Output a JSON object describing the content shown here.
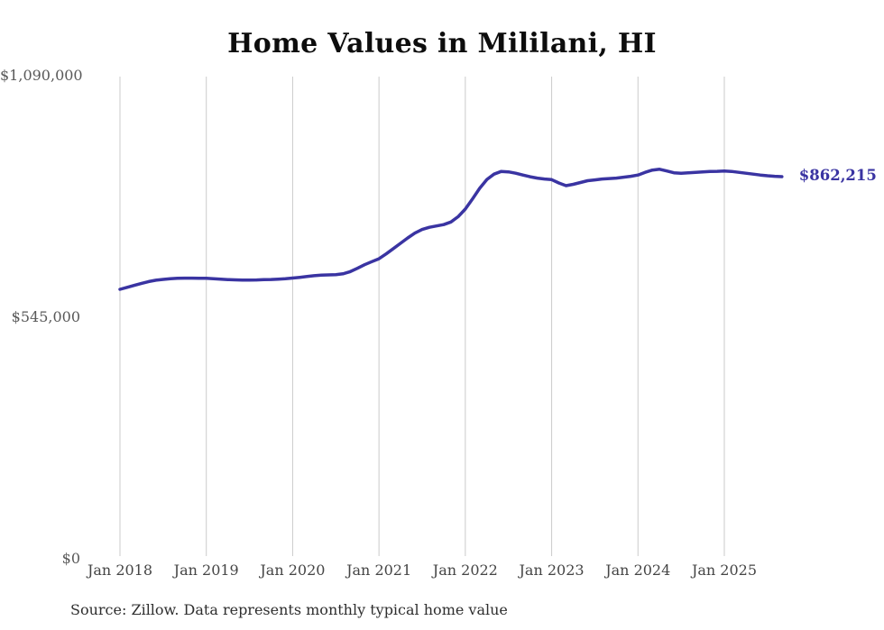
{
  "chart_data": {
    "type": "line",
    "title": "Home Values in Mililani, HI",
    "source_note": "Source: Zillow. Data represents monthly typical home value",
    "end_label": "$862,215",
    "line_color": "#3a34a2",
    "gridline_color": "#cbcbcb",
    "ylim": [
      0,
      1090000
    ],
    "grid": "vertical-only",
    "legend_position": "none",
    "y_ticks": [
      {
        "value": 0,
        "label": "$0"
      },
      {
        "value": 545000,
        "label": "$545,000"
      },
      {
        "value": 1090000,
        "label": "$1,090,000"
      }
    ],
    "x_ticks": [
      "Jan 2018",
      "Jan 2019",
      "Jan 2020",
      "Jan 2021",
      "Jan 2022",
      "Jan 2023",
      "Jan 2024",
      "Jan 2025"
    ],
    "x_start_month": "2018-01",
    "x_end_month": "2025-09",
    "x_cadence": "monthly",
    "series": [
      {
        "name": "Typical home value",
        "values": [
          608000,
          612500,
          617000,
          621500,
          625500,
          628500,
          630500,
          632000,
          633000,
          633200,
          633200,
          633000,
          632800,
          632000,
          631000,
          630000,
          629300,
          629000,
          629000,
          629200,
          629700,
          630300,
          631000,
          632000,
          633500,
          635000,
          637000,
          638800,
          640000,
          640500,
          641200,
          643000,
          648000,
          655500,
          663500,
          670500,
          677000,
          688000,
          700000,
          712000,
          724000,
          735000,
          743000,
          748000,
          751000,
          754000,
          760000,
          772000,
          789000,
          812000,
          836000,
          856000,
          868000,
          874000,
          873000,
          870000,
          866000,
          862000,
          859000,
          857000,
          855500,
          848000,
          842000,
          845000,
          849000,
          853000,
          855000,
          857000,
          858000,
          859000,
          861000,
          863000,
          866000,
          872000,
          877000,
          879000,
          875000,
          871000,
          870000,
          871000,
          872000,
          873000,
          874000,
          874200,
          874800,
          874000,
          872000,
          870000,
          868000,
          866000,
          864200,
          863000,
          862215
        ]
      }
    ]
  }
}
